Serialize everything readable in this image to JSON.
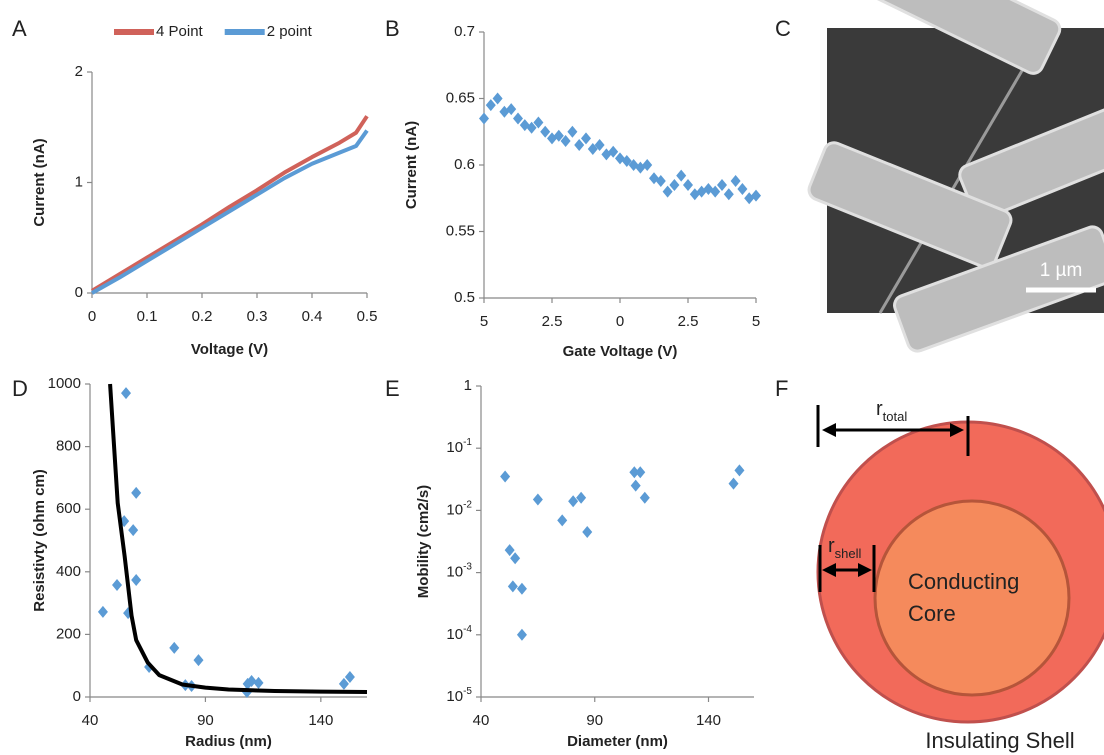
{
  "panels": [
    "A",
    "B",
    "C",
    "D",
    "E",
    "F"
  ],
  "image": {
    "scale_bar": "1 µm"
  },
  "diagram": {
    "r_total": {
      "symbol": "r",
      "subscript": "total"
    },
    "r_shell": {
      "symbol": "r",
      "subscript": "shell"
    },
    "core_label": [
      "Conducting",
      "Core"
    ],
    "shell_label": "Insulating Shell"
  },
  "chart_data": [
    {
      "type": "line",
      "x_label": "Voltage (V)",
      "y_label": "Current (nA)",
      "x": [
        0,
        0.05,
        0.1,
        0.15,
        0.2,
        0.25,
        0.3,
        0.35,
        0.4,
        0.45,
        0.48,
        0.5
      ],
      "series": [
        {
          "name": "4 Point",
          "color": "#d0625a",
          "values": [
            0.02,
            0.17,
            0.32,
            0.47,
            0.62,
            0.78,
            0.93,
            1.09,
            1.23,
            1.36,
            1.45,
            1.6
          ]
        },
        {
          "name": "2 point",
          "color": "#5b9bd5",
          "values": [
            0,
            0.14,
            0.29,
            0.44,
            0.59,
            0.74,
            0.89,
            1.04,
            1.17,
            1.27,
            1.33,
            1.47
          ]
        }
      ],
      "xlim": [
        0,
        0.5
      ],
      "xticks": [
        0,
        0.1,
        0.2,
        0.3,
        0.4,
        0.5
      ],
      "ylim": [
        0,
        2
      ],
      "yticks": [
        0,
        1,
        2
      ],
      "legend": "top"
    },
    {
      "type": "line",
      "marker": "diamond",
      "x_label": "Gate Voltage (V)",
      "y_label": "Current (nA)",
      "x": [
        -5,
        -4.75,
        -4.5,
        -4.25,
        -4,
        -3.75,
        -3.5,
        -3.25,
        -3,
        -2.75,
        -2.5,
        -2.25,
        -2,
        -1.75,
        -1.5,
        -1.25,
        -1,
        -0.75,
        -0.5,
        -0.25,
        0,
        0.25,
        0.5,
        0.75,
        1,
        1.25,
        1.5,
        1.75,
        2,
        2.25,
        2.5,
        2.75,
        3,
        3.25,
        3.5,
        3.75,
        4,
        4.25,
        4.5,
        4.75,
        5
      ],
      "series": [
        {
          "color": "#5b9bd5",
          "values": [
            0.635,
            0.645,
            0.65,
            0.64,
            0.642,
            0.635,
            0.63,
            0.628,
            0.632,
            0.625,
            0.62,
            0.622,
            0.618,
            0.625,
            0.615,
            0.62,
            0.612,
            0.615,
            0.608,
            0.61,
            0.605,
            0.603,
            0.6,
            0.598,
            0.6,
            0.59,
            0.588,
            0.58,
            0.585,
            0.592,
            0.585,
            0.578,
            0.58,
            0.582,
            0.58,
            0.585,
            0.578,
            0.588,
            0.582,
            0.575,
            0.577
          ]
        }
      ],
      "xlim": [
        -5,
        5
      ],
      "xticks": [
        {
          "value": -5,
          "label": "5"
        },
        {
          "value": -2.5,
          "label": "2.5"
        },
        0,
        2.5,
        5
      ],
      "ylim": [
        0.5,
        0.7
      ],
      "yticks": [
        0.5,
        0.55,
        0.6,
        0.65,
        0.7
      ]
    },
    {
      "type": "scatter",
      "x_label": "Radius (nm)",
      "y_label": "Resistivty (ohm cm)",
      "series": [
        {
          "color": "#5b9bd5",
          "x": [
            45.6,
            51.7,
            55.6,
            54.8,
            56.5,
            58.7,
            60,
            60,
            65.6,
            76.5,
            81.3,
            84,
            87,
            108,
            108.3,
            110,
            113,
            150,
            152.6
          ],
          "values": [
            272,
            358,
            971,
            562,
            268,
            533,
            652,
            374,
            96,
            157,
            38,
            35,
            118,
            16,
            42,
            51,
            45,
            42,
            64
          ]
        },
        {
          "type": "line",
          "color": "#000000",
          "x": [
            48.7,
            50,
            52,
            55,
            58,
            60,
            65,
            70,
            80,
            90,
            100,
            120,
            140,
            160
          ],
          "values": [
            1000,
            850,
            620,
            450,
            260,
            182,
            110,
            70,
            40,
            30,
            24,
            19,
            17,
            16
          ]
        }
      ],
      "xlim": [
        40,
        160
      ],
      "xticks": [
        40,
        90,
        140
      ],
      "ylim": [
        0,
        1000
      ],
      "yticks": [
        0,
        200,
        400,
        600,
        800,
        1000
      ]
    },
    {
      "type": "scatter",
      "log_y": true,
      "x_label": "Diameter (nm)",
      "y_label": "Mobility (cm2/s)",
      "series": [
        {
          "color": "#5b9bd5",
          "x": [
            50.6,
            65,
            52.6,
            55,
            54,
            58,
            58,
            75.7,
            80.5,
            84,
            86.7,
            107.4,
            110,
            108,
            112,
            151,
            153.6
          ],
          "values": [
            0.035,
            0.015,
            0.0023,
            0.0017,
            0.0006,
            0.00055,
            0.0001,
            0.0069,
            0.014,
            0.016,
            0.0045,
            0.041,
            0.041,
            0.025,
            0.016,
            0.027,
            0.044
          ]
        }
      ],
      "xlim": [
        40,
        160
      ],
      "xticks": [
        40,
        90,
        140
      ],
      "ylim": [
        1e-05,
        1
      ],
      "yticks": [
        {
          "value": 1e-05,
          "label": "10-5"
        },
        {
          "value": 0.0001,
          "label": "10-4"
        },
        {
          "value": 0.001,
          "label": "10-3"
        },
        {
          "value": 0.01,
          "label": "10-2"
        },
        {
          "value": 0.1,
          "label": "10-1"
        },
        1
      ]
    }
  ]
}
